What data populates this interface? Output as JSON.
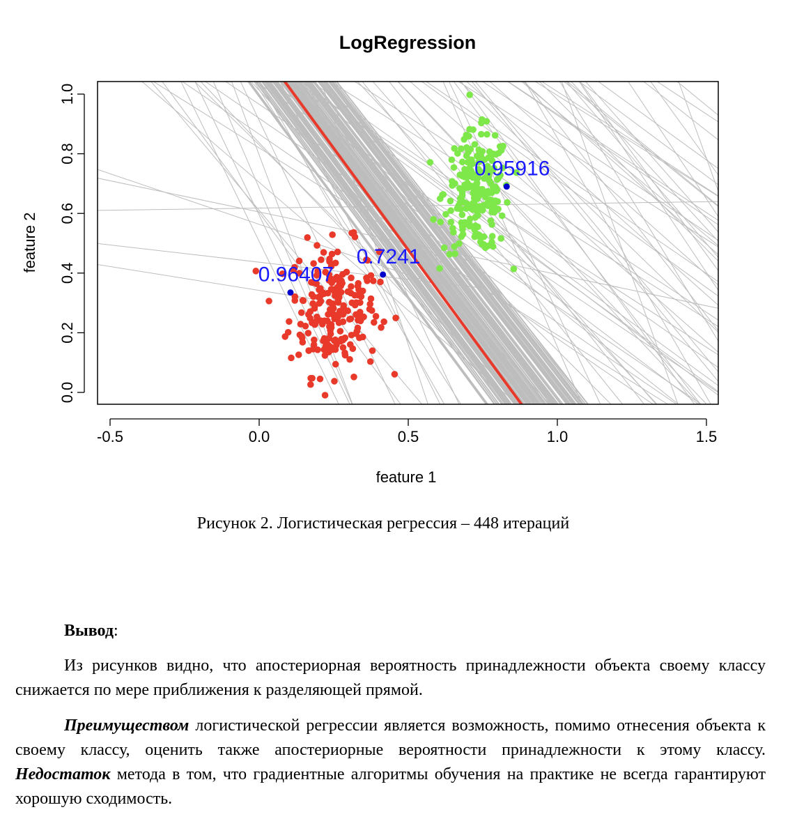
{
  "figure": {
    "chart_data": {
      "type": "scatter",
      "title": "LogRegression",
      "xlabel": "feature 1",
      "ylabel": "feature 2",
      "xlim": [
        -0.55,
        1.55
      ],
      "ylim": [
        -0.04,
        1.05
      ],
      "x_ticks": [
        "-0.5",
        "0.0",
        "0.5",
        "1.0",
        "1.5"
      ],
      "y_ticks": [
        "0.0",
        "0.2",
        "0.4",
        "0.6",
        "0.8",
        "1.0"
      ],
      "grid": false,
      "legend": "none",
      "series": [
        {
          "class": "red",
          "color": "#e8392a",
          "center": [
            0.25,
            0.28
          ],
          "spread": [
            0.075,
            0.11
          ],
          "count": 220
        },
        {
          "class": "green",
          "color": "#7ee84a",
          "center": [
            0.73,
            0.67
          ],
          "spread": [
            0.055,
            0.1
          ],
          "count": 220
        }
      ],
      "decision_boundary": {
        "color": "#e8392a",
        "from": [
          0.08,
          1.05
        ],
        "to": [
          0.88,
          -0.04
        ]
      },
      "iteration_lines_color": "#bdbdbd",
      "highlighted_points": [
        {
          "label": "0.96407",
          "x": 0.105,
          "y": 0.335,
          "color": "#1a1aff"
        },
        {
          "label": "0.7241",
          "x": 0.415,
          "y": 0.395,
          "color": "#1a1aff"
        },
        {
          "label": "0.95916",
          "x": 0.83,
          "y": 0.69,
          "color": "#1a1aff"
        }
      ]
    },
    "caption": "Рисунок 2. Логистическая регрессия – 448 итераций"
  },
  "conclusion": {
    "heading_bold": "Вывод",
    "heading_suffix": ":",
    "p1": "Из рисунков видно, что апостериорная вероятность принадлежности объекта своему классу снижается по мере приближения к разделяющей прямой.",
    "p2_bold1": "Преимуществом",
    "p2_text1": " логистической регрессии является возможность, помимо отнесения объекта к своему классу, оценить также апостериорные вероятности принадлежности к этому классу. ",
    "p2_bold2": "Недостаток",
    "p2_text2": " метода в том, что градиентные алгоритмы обучения на практике не всегда гарантируют хорошую сходимость."
  }
}
